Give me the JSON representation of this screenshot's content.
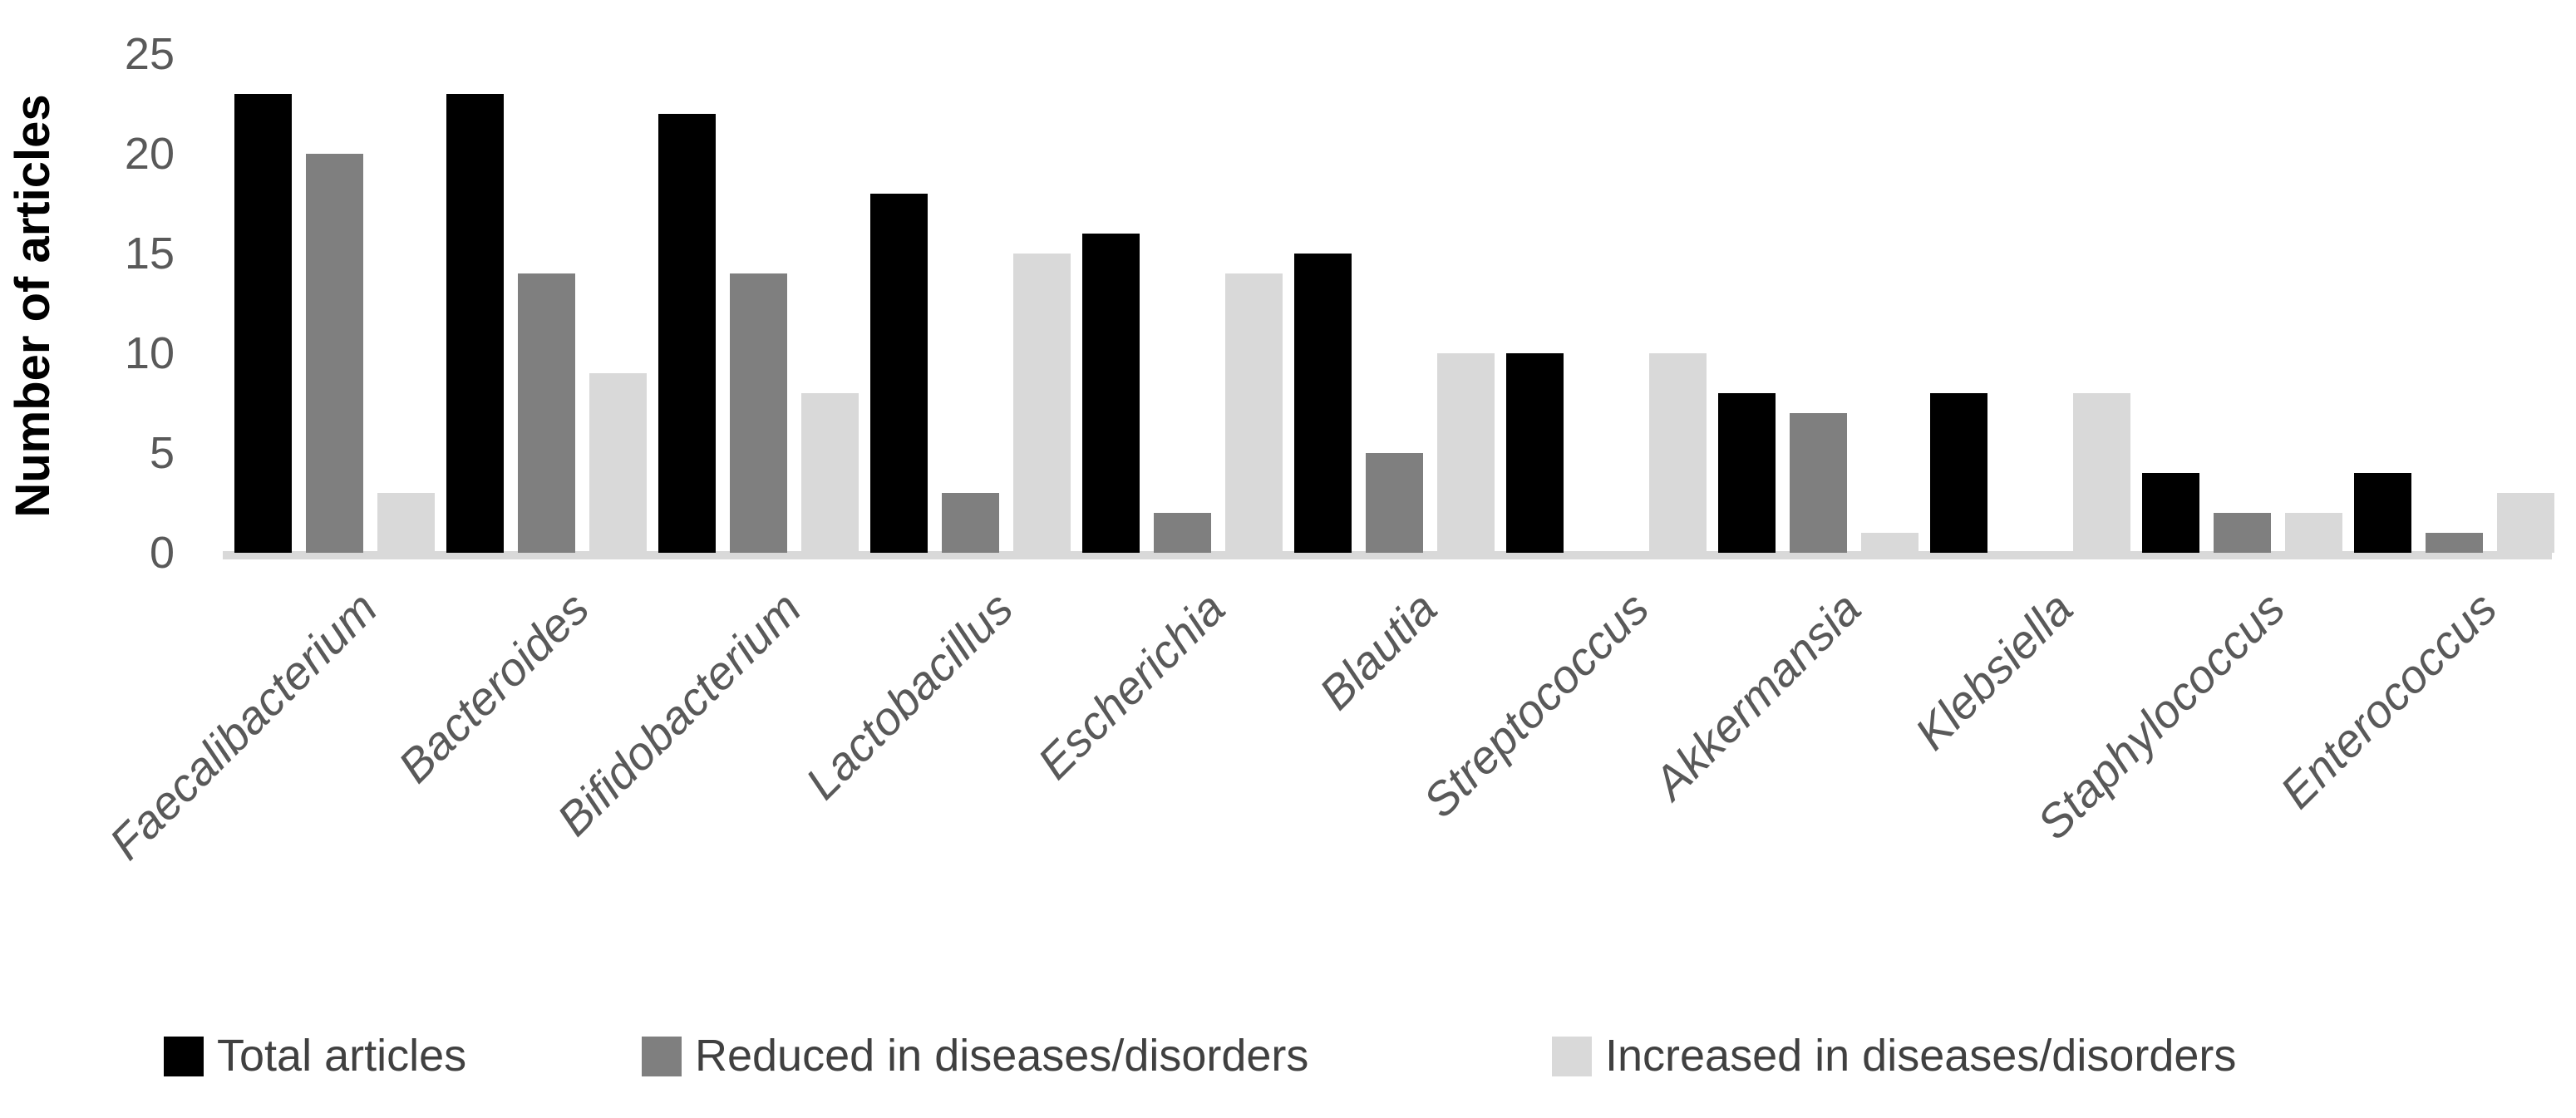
{
  "chart_data": {
    "type": "bar",
    "title": "",
    "xlabel": "",
    "ylabel": "Number of articles",
    "ylim": [
      0,
      25
    ],
    "yticks": [
      0,
      5,
      10,
      15,
      20,
      25
    ],
    "grid": false,
    "legend_position": "bottom",
    "categories": [
      "Faecalibacterium",
      "Bacteroides",
      "Bifidobacterium",
      "Lactobacillus",
      "Escherichia",
      "Blautia",
      "Streptococcus",
      "Akkermansia",
      "Klebsiella",
      "Staphylococcus",
      "Enterococcus"
    ],
    "series": [
      {
        "name": "Total articles",
        "color": "#000000",
        "values": [
          23,
          23,
          22,
          18,
          16,
          15,
          10,
          8,
          8,
          4,
          4
        ]
      },
      {
        "name": "Reduced in diseases/disorders",
        "color": "#7f7f7f",
        "values": [
          20,
          14,
          14,
          3,
          2,
          5,
          0,
          7,
          0,
          2,
          1
        ]
      },
      {
        "name": "Increased in diseases/disorders",
        "color": "#d9d9d9",
        "values": [
          3,
          9,
          8,
          15,
          14,
          10,
          10,
          1,
          8,
          2,
          3
        ]
      }
    ]
  },
  "colors": {
    "background": "#ffffff",
    "axis_title_text": "#000000",
    "tick_text": "#595959",
    "category_text": "#595959",
    "legend_text": "#404040",
    "baseline_strip": "#d9d9d9"
  }
}
